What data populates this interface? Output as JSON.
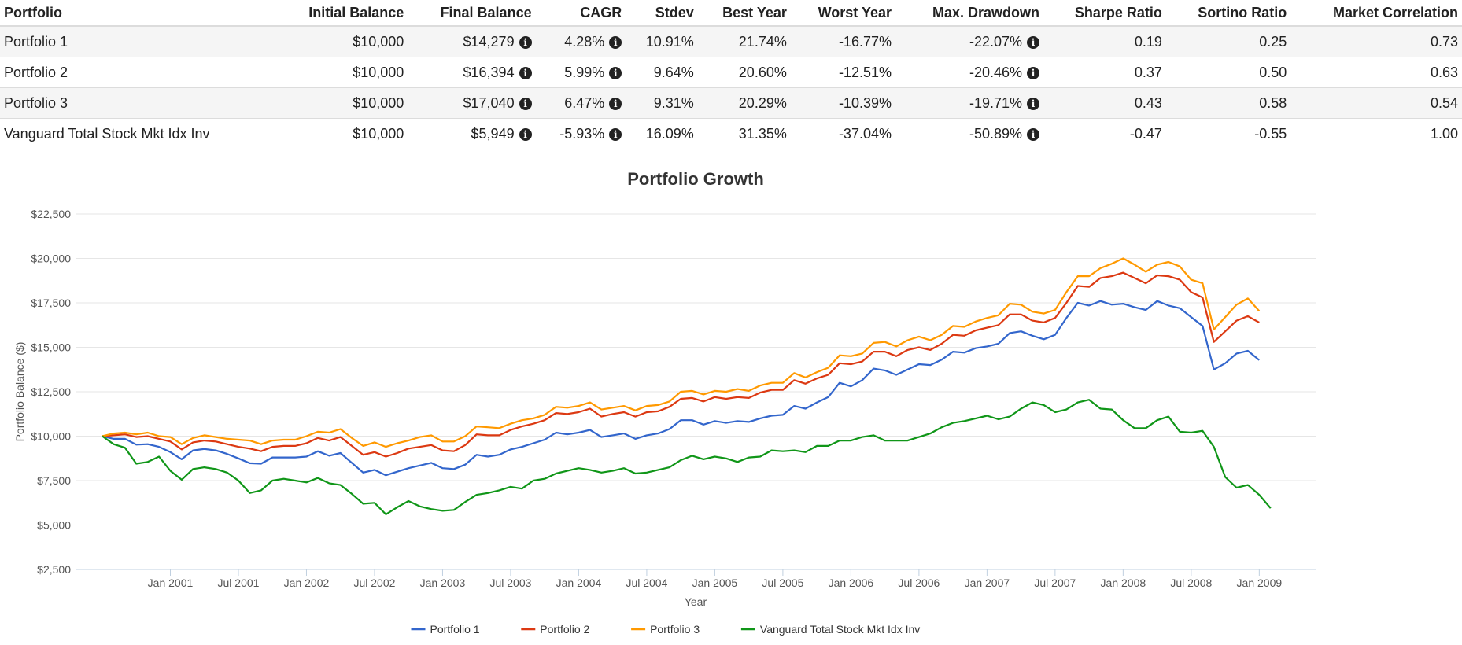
{
  "table": {
    "headers": [
      "Portfolio",
      "Initial Balance",
      "Final Balance",
      "CAGR",
      "Stdev",
      "Best Year",
      "Worst Year",
      "Max. Drawdown",
      "Sharpe Ratio",
      "Sortino Ratio",
      "Market Correlation"
    ],
    "rows": [
      [
        "Portfolio 1",
        "$10,000",
        "$14,279",
        "4.28%",
        "10.91%",
        "21.74%",
        "-16.77%",
        "-22.07%",
        "0.19",
        "0.25",
        "0.73"
      ],
      [
        "Portfolio 2",
        "$10,000",
        "$16,394",
        "5.99%",
        "9.64%",
        "20.60%",
        "-12.51%",
        "-20.46%",
        "0.37",
        "0.50",
        "0.63"
      ],
      [
        "Portfolio 3",
        "$10,000",
        "$17,040",
        "6.47%",
        "9.31%",
        "20.29%",
        "-10.39%",
        "-19.71%",
        "0.43",
        "0.58",
        "0.54"
      ],
      [
        "Vanguard Total Stock Mkt Idx Inv",
        "$10,000",
        "$5,949",
        "-5.93%",
        "16.09%",
        "31.35%",
        "-37.04%",
        "-50.89%",
        "-0.47",
        "-0.55",
        "1.00"
      ]
    ],
    "info_columns": [
      2,
      3,
      7
    ],
    "info_icon": "info-circle-icon"
  },
  "chart_data": {
    "type": "line",
    "title": "Portfolio Growth",
    "xlabel": "Year",
    "ylabel": "Portfolio Balance ($)",
    "x_start": "2000-07",
    "x_end": "2009-05",
    "x_ticks": [
      "Jan 2001",
      "Jul 2001",
      "Jan 2002",
      "Jul 2002",
      "Jan 2003",
      "Jul 2003",
      "Jan 2004",
      "Jul 2004",
      "Jan 2005",
      "Jul 2005",
      "Jan 2006",
      "Jul 2006",
      "Jan 2007",
      "Jul 2007",
      "Jan 2008",
      "Jul 2008",
      "Jan 2009"
    ],
    "ylim": [
      2500,
      22500
    ],
    "y_ticks": [
      "$2,500",
      "$5,000",
      "$7,500",
      "$10,000",
      "$12,500",
      "$15,000",
      "$17,500",
      "$20,000",
      "$22,500"
    ],
    "grid": true,
    "legend": "bottom",
    "series": [
      {
        "name": "Portfolio 1",
        "color": "#3366cc",
        "values": [
          10000,
          9850,
          9850,
          9520,
          9550,
          9400,
          9100,
          8700,
          9200,
          9280,
          9200,
          9000,
          8750,
          8480,
          8450,
          8800,
          8800,
          8800,
          8850,
          9150,
          8900,
          9050,
          8500,
          7950,
          8100,
          7800,
          8000,
          8200,
          8350,
          8500,
          8200,
          8150,
          8400,
          8950,
          8850,
          8950,
          9250,
          9400,
          9600,
          9800,
          10200,
          10100,
          10200,
          10350,
          9950,
          10050,
          10150,
          9850,
          10050,
          10150,
          10400,
          10900,
          10900,
          10650,
          10850,
          10750,
          10850,
          10800,
          11000,
          11150,
          11200,
          11700,
          11550,
          11900,
          12200,
          13000,
          12800,
          13150,
          13800,
          13700,
          13450,
          13750,
          14050,
          14000,
          14300,
          14750,
          14700,
          14950,
          15050,
          15200,
          15800,
          15900,
          15650,
          15450,
          15700,
          16650,
          17500,
          17350,
          17600,
          17400,
          17450,
          17250,
          17100,
          17600,
          17350,
          17200,
          16700,
          16200,
          13750,
          14100,
          14650,
          14800,
          14279
        ]
      },
      {
        "name": "Portfolio 2",
        "color": "#dc3912",
        "values": [
          10000,
          10050,
          10100,
          9950,
          10000,
          9850,
          9700,
          9250,
          9650,
          9750,
          9700,
          9550,
          9400,
          9300,
          9150,
          9400,
          9450,
          9450,
          9600,
          9900,
          9750,
          9950,
          9450,
          8950,
          9100,
          8850,
          9050,
          9300,
          9400,
          9500,
          9200,
          9150,
          9500,
          10100,
          10050,
          10050,
          10350,
          10550,
          10700,
          10900,
          11300,
          11250,
          11350,
          11550,
          11100,
          11250,
          11350,
          11100,
          11350,
          11400,
          11650,
          12100,
          12150,
          11950,
          12200,
          12100,
          12200,
          12150,
          12450,
          12600,
          12600,
          13150,
          12950,
          13250,
          13450,
          14100,
          14050,
          14200,
          14750,
          14750,
          14500,
          14850,
          15000,
          14850,
          15200,
          15700,
          15650,
          15950,
          16100,
          16250,
          16850,
          16850,
          16500,
          16400,
          16650,
          17500,
          18450,
          18400,
          18900,
          19000,
          19200,
          18900,
          18600,
          19050,
          19000,
          18800,
          18100,
          17800,
          15300,
          15900,
          16500,
          16750,
          16394
        ]
      },
      {
        "name": "Portfolio 3",
        "color": "#ff9900",
        "values": [
          10000,
          10150,
          10200,
          10100,
          10200,
          10000,
          9950,
          9550,
          9900,
          10050,
          9950,
          9850,
          9800,
          9750,
          9550,
          9750,
          9800,
          9800,
          10000,
          10250,
          10200,
          10400,
          9900,
          9450,
          9650,
          9400,
          9600,
          9750,
          9950,
          10050,
          9700,
          9700,
          10000,
          10550,
          10500,
          10450,
          10700,
          10900,
          11000,
          11200,
          11650,
          11600,
          11700,
          11900,
          11500,
          11600,
          11700,
          11450,
          11700,
          11750,
          11950,
          12500,
          12550,
          12350,
          12550,
          12500,
          12650,
          12550,
          12850,
          13000,
          13000,
          13550,
          13300,
          13600,
          13850,
          14550,
          14500,
          14650,
          15250,
          15300,
          15050,
          15400,
          15600,
          15400,
          15700,
          16200,
          16150,
          16450,
          16650,
          16800,
          17450,
          17400,
          17000,
          16900,
          17100,
          18100,
          19000,
          19000,
          19450,
          19700,
          20000,
          19650,
          19250,
          19650,
          19800,
          19550,
          18800,
          18600,
          16000,
          16700,
          17400,
          17750,
          17040
        ]
      },
      {
        "name": "Vanguard Total Stock Mkt Idx Inv",
        "color": "#109618",
        "values": [
          10000,
          9550,
          9350,
          8450,
          8550,
          8850,
          8050,
          7550,
          8150,
          8250,
          8150,
          7950,
          7500,
          6800,
          6950,
          7500,
          7600,
          7500,
          7400,
          7650,
          7350,
          7250,
          6750,
          6200,
          6250,
          5600,
          6000,
          6350,
          6050,
          5900,
          5800,
          5850,
          6300,
          6700,
          6800,
          6950,
          7150,
          7050,
          7500,
          7600,
          7900,
          8050,
          8200,
          8100,
          7950,
          8050,
          8200,
          7900,
          7950,
          8100,
          8250,
          8650,
          8900,
          8700,
          8850,
          8750,
          8550,
          8800,
          8850,
          9200,
          9150,
          9200,
          9100,
          9450,
          9450,
          9750,
          9750,
          9950,
          10050,
          9750,
          9750,
          9750,
          9950,
          10150,
          10500,
          10750,
          10850,
          11000,
          11150,
          10950,
          11100,
          11550,
          11900,
          11750,
          11350,
          11500,
          11900,
          12050,
          11550,
          11500,
          10900,
          10450,
          10450,
          10900,
          11100,
          10250,
          10200,
          10300,
          9400,
          7700,
          7100,
          7250,
          6700,
          5949
        ]
      }
    ]
  }
}
